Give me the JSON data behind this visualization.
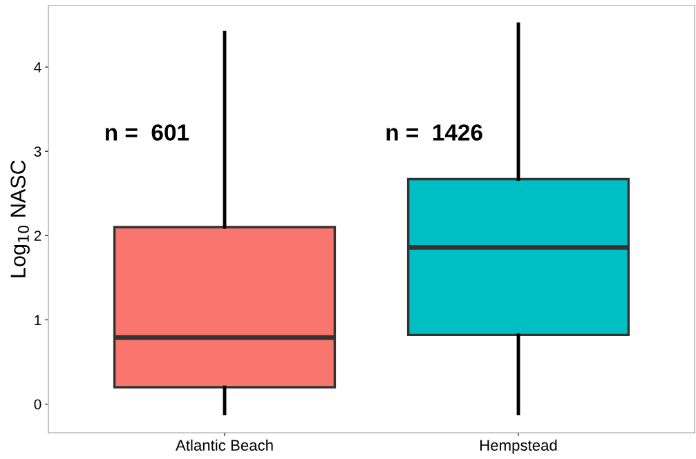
{
  "chart_data": {
    "type": "box",
    "ylabel": "Log$_{10}$ NASC",
    "categories": [
      "Atlantic Beach",
      "Hempstead"
    ],
    "boxes": [
      {
        "low": -0.11,
        "q1": 0.2,
        "median": 0.79,
        "q3": 2.1,
        "high": 4.41
      },
      {
        "low": -0.11,
        "q1": 0.82,
        "median": 1.86,
        "q3": 2.67,
        "high": 4.51
      }
    ],
    "colors": [
      "#f8766d",
      "#00bfc4"
    ],
    "ylim": [
      -0.34,
      4.73
    ],
    "yticks": [
      0,
      1,
      2,
      3,
      4
    ],
    "grid": false,
    "legend": false,
    "annotations": [
      {
        "text": "n =  601",
        "x": "Atlantic Beach",
        "y": 3.2
      },
      {
        "text": "n =  1426",
        "x": "Hempstead",
        "y": 3.2
      }
    ]
  }
}
